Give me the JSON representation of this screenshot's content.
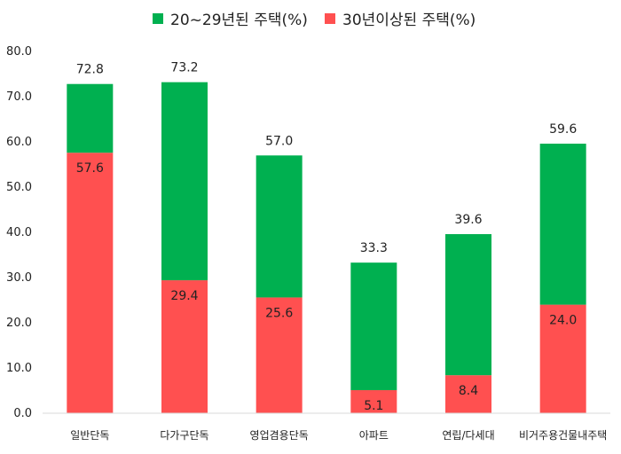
{
  "chart_data": {
    "type": "bar",
    "stacked": true,
    "title": "",
    "xlabel": "",
    "ylabel": "",
    "ylim": [
      0,
      80
    ],
    "yticks": [
      "0.0",
      "10.0",
      "20.0",
      "30.0",
      "40.0",
      "50.0",
      "60.0",
      "70.0",
      "80.0"
    ],
    "grid": false,
    "legend_position": "top",
    "categories": [
      "일반단독",
      "다가구단독",
      "영업겸용단독",
      "아파트",
      "연립/다세대",
      "비거주용건물내주택"
    ],
    "series": [
      {
        "name": "30년이상된 주택(%)",
        "color": "#ff5050",
        "values": [
          57.6,
          29.4,
          25.6,
          5.1,
          8.4,
          24.0
        ]
      },
      {
        "name": "20~29년된 주택(%)",
        "color": "#00b050",
        "values": [
          15.2,
          43.8,
          31.4,
          28.2,
          31.2,
          35.6
        ]
      }
    ],
    "bottom_labels": [
      "57.6",
      "29.4",
      "25.6",
      "5.1",
      "8.4",
      "24.0"
    ],
    "total_labels": [
      "72.8",
      "73.2",
      "57.0",
      "33.3",
      "39.6",
      "59.6"
    ],
    "totals": [
      72.8,
      73.2,
      57.0,
      33.3,
      39.6,
      59.6
    ]
  }
}
